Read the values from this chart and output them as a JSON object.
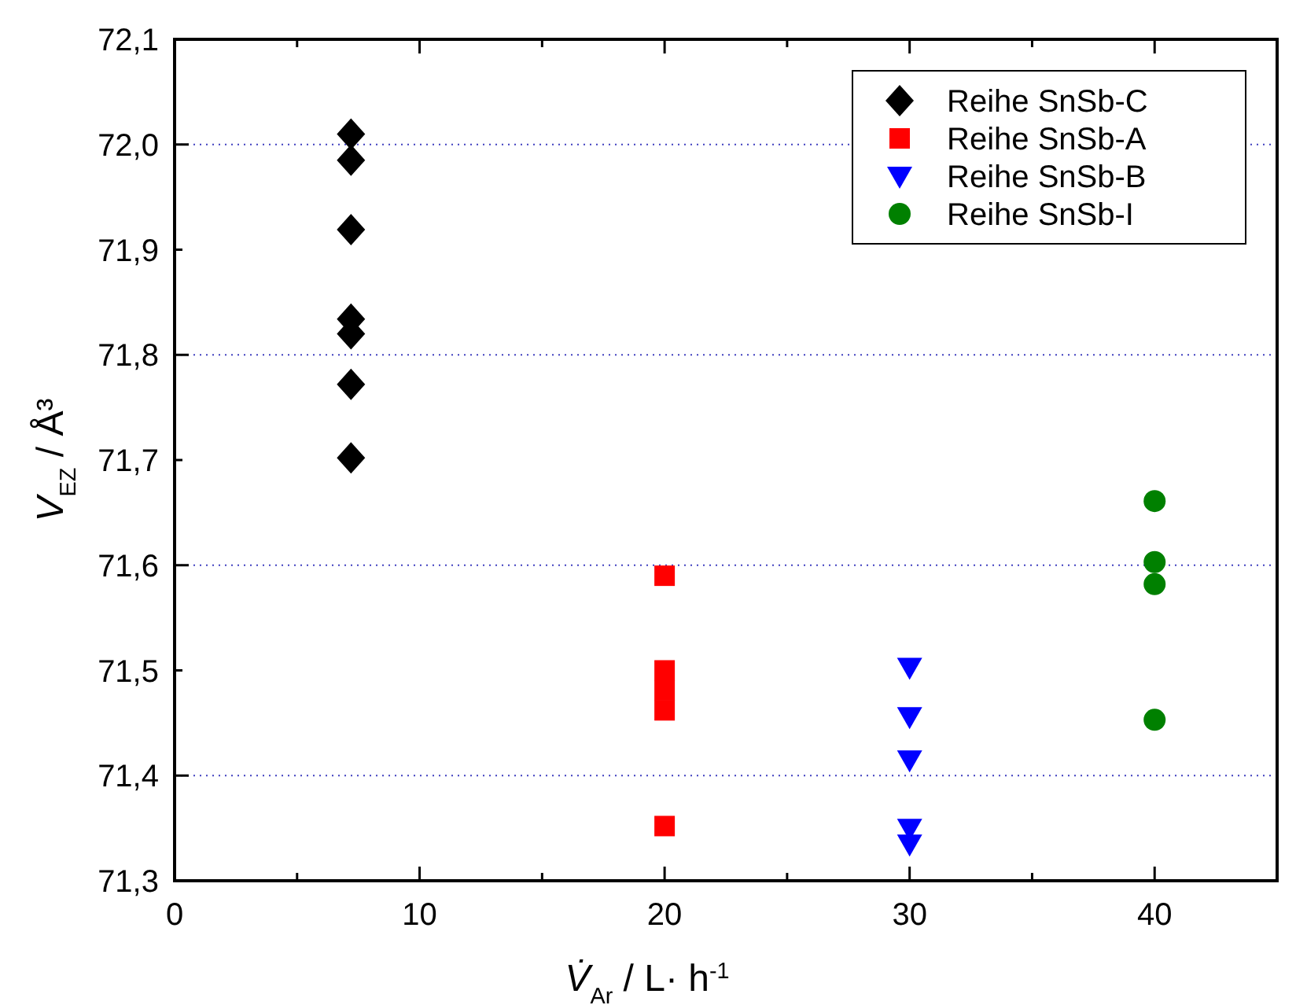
{
  "chart_data": {
    "type": "scatter",
    "xlabel": "V̇$_{Ar}$ / L· h$^{-1}$",
    "ylabel": "V$_{EZ}$ / Å³",
    "xlim": [
      0,
      45
    ],
    "ylim": [
      71.3,
      72.1
    ],
    "xticks": [
      0,
      {
        "value": 5,
        "label": null
      },
      10,
      {
        "value": 15,
        "label": null
      },
      20,
      {
        "value": 25,
        "label": null
      },
      30,
      {
        "value": 35,
        "label": null
      },
      40
    ],
    "yticks": [
      {
        "value": 71.3,
        "label": "71,3"
      },
      {
        "value": 71.4,
        "label": "71,4"
      },
      {
        "value": 71.5,
        "label": "71,5"
      },
      {
        "value": 71.6,
        "label": "71,6"
      },
      {
        "value": 71.7,
        "label": "71,7"
      },
      {
        "value": 71.8,
        "label": "71,8"
      },
      {
        "value": 71.9,
        "label": "71,9"
      },
      {
        "value": 72.0,
        "label": "72,0"
      },
      {
        "value": 72.1,
        "label": "72,1"
      }
    ],
    "grid": "y",
    "legend": "top right",
    "series": [
      {
        "name": "Reihe SnSb-C",
        "color": "#000000",
        "marker": "diamond",
        "x": [
          7.2,
          7.2,
          7.2,
          7.2,
          7.2,
          7.2,
          7.2
        ],
        "values": [
          72.01,
          71.985,
          71.919,
          71.834,
          71.82,
          71.772,
          71.702
        ]
      },
      {
        "name": "Reihe SnSb-A",
        "color": "#ff0000",
        "marker": "square",
        "x": [
          20,
          20,
          20,
          20,
          20
        ],
        "values": [
          71.59,
          71.5,
          71.481,
          71.462,
          71.352
        ]
      },
      {
        "name": "Reihe SnSb-B",
        "color": "#0000ff",
        "marker": "triangle",
        "x": [
          30,
          30,
          30,
          30,
          30
        ],
        "values": [
          71.503,
          71.456,
          71.415,
          71.35,
          71.335
        ]
      },
      {
        "name": "Reihe SnSb-I",
        "color": "#008000",
        "marker": "circle",
        "x": [
          40,
          40,
          40,
          40
        ],
        "values": [
          71.661,
          71.603,
          71.582,
          71.453
        ]
      }
    ]
  }
}
